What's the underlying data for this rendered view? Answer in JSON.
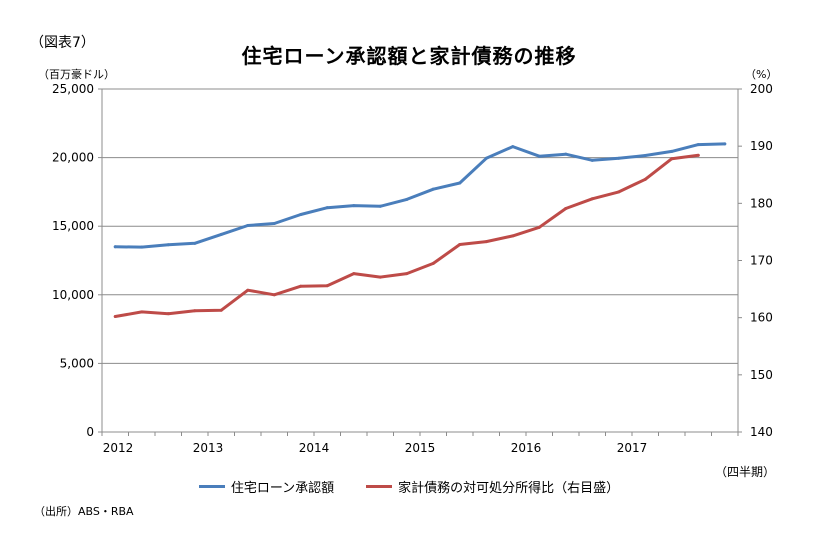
{
  "figure_label": "（図表7）",
  "title": "住宅ローン承認額と家計債務の推移",
  "left_unit": "（百万豪ドル）",
  "right_unit": "（%）",
  "period_unit": "（四半期）",
  "source": "（出所）ABS・RBA",
  "chart_data": {
    "type": "line",
    "title": "住宅ローン承認額と家計債務の推移",
    "x_tick_labels": [
      "2012",
      "2013",
      "2014",
      "2015",
      "2016",
      "2017"
    ],
    "x": [
      "2012Q1",
      "2012Q2",
      "2012Q3",
      "2012Q4",
      "2013Q1",
      "2013Q2",
      "2013Q3",
      "2013Q4",
      "2014Q1",
      "2014Q2",
      "2014Q3",
      "2014Q4",
      "2015Q1",
      "2015Q2",
      "2015Q3",
      "2015Q4",
      "2016Q1",
      "2016Q2",
      "2016Q3",
      "2016Q4",
      "2017Q1",
      "2017Q2",
      "2017Q3",
      "2017Q4"
    ],
    "left_axis": {
      "ylim": [
        0,
        25000
      ],
      "ticks": [
        0,
        5000,
        10000,
        15000,
        20000,
        25000
      ],
      "tick_labels": [
        "0",
        "5,000",
        "10,000",
        "15,000",
        "20,000",
        "25,000"
      ]
    },
    "right_axis": {
      "ylim": [
        140,
        200
      ],
      "ticks": [
        140,
        150,
        160,
        170,
        180,
        190,
        200
      ],
      "tick_labels": [
        "140",
        "150",
        "160",
        "170",
        "180",
        "190",
        "200"
      ]
    },
    "grid": true,
    "legend_position": "bottom",
    "series": [
      {
        "name": "住宅ローン承認額",
        "axis": "left",
        "color": "#4a7ebb",
        "values": [
          13500,
          13480,
          13650,
          13750,
          14400,
          15050,
          15200,
          15850,
          16350,
          16500,
          16450,
          16950,
          17700,
          18150,
          19950,
          20800,
          20100,
          20250,
          19800,
          19950,
          20150,
          20450,
          20950,
          21000
        ]
      },
      {
        "name": "家計債務の対可処分所得比（右目盛）",
        "axis": "right",
        "color": "#be4b48",
        "values": [
          160.2,
          161.0,
          160.7,
          161.2,
          161.3,
          164.8,
          164.0,
          165.5,
          165.6,
          167.7,
          167.1,
          167.7,
          169.5,
          172.8,
          173.3,
          174.3,
          175.8,
          179.1,
          180.8,
          182.0,
          184.2,
          187.8,
          188.4,
          null
        ]
      }
    ]
  }
}
